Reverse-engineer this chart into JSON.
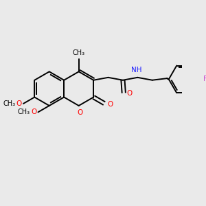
{
  "bg_color": "#eaeaea",
  "bond_color": "#000000",
  "bond_width": 1.4,
  "figsize": [
    3.0,
    3.0
  ],
  "dpi": 100,
  "xlim": [
    0,
    10
  ],
  "ylim": [
    0,
    10
  ],
  "atoms": {
    "O_red": "#ff0000",
    "N_blue": "#1a1aff",
    "F_purple": "#cc44cc",
    "C_black": "#000000"
  },
  "font_size": 7.5
}
